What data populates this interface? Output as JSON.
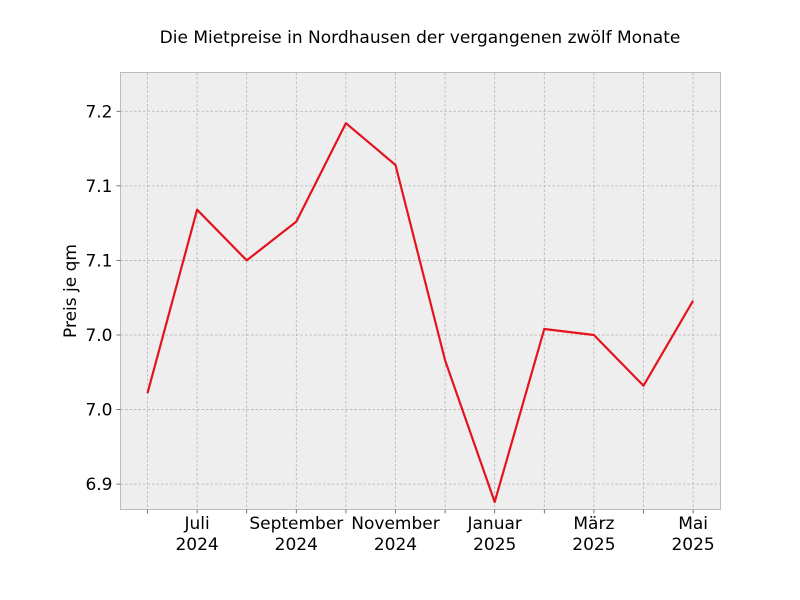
{
  "chart_data": {
    "type": "line",
    "title": "Die Mietpreise in Nordhausen der vergangenen zwölf Monate",
    "xlabel": "",
    "ylabel": "Preis je qm",
    "x": [
      "2024-06",
      "2024-07",
      "2024-08",
      "2024-09",
      "2024-10",
      "2024-11",
      "2024-12",
      "2025-01",
      "2025-02",
      "2025-03",
      "2025-04",
      "2025-05"
    ],
    "x_tick_labels": [
      {
        "month": "Juli",
        "year": "2024"
      },
      {
        "month": "September",
        "year": "2024"
      },
      {
        "month": "November",
        "year": "2024"
      },
      {
        "month": "Januar",
        "year": "2025"
      },
      {
        "month": "März",
        "year": "2025"
      },
      {
        "month": "Mai",
        "year": "2025"
      }
    ],
    "y_tick_labels": [
      "6.9",
      "7.0",
      "7.0",
      "7.1",
      "7.1",
      "7.2"
    ],
    "y_tick_values": [
      6.9,
      6.95,
      7.0,
      7.05,
      7.1,
      7.15
    ],
    "ylim": [
      6.883,
      7.176
    ],
    "series": [
      {
        "values": [
          6.961,
          7.084,
          7.05,
          7.076,
          7.142,
          7.114,
          6.983,
          6.888,
          7.004,
          7.0,
          6.966,
          7.023
        ],
        "color": "#e3141e"
      }
    ],
    "grid": true,
    "background": "#eeeeee"
  }
}
